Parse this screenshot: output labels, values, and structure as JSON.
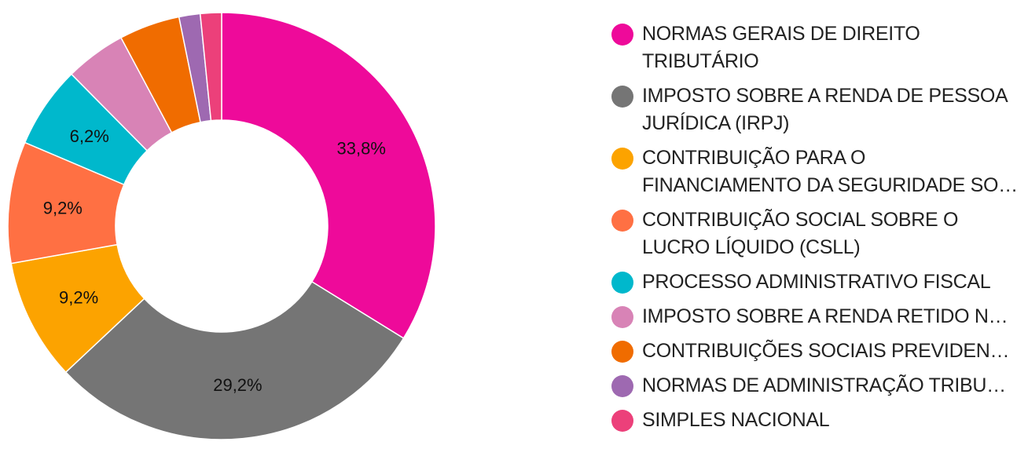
{
  "chart_data": {
    "type": "pie",
    "donut": true,
    "title": "",
    "legend_position": "right",
    "slices": [
      {
        "label": "NORMAS GERAIS DE DIREITO TRIBUTÁRIO",
        "value": 33.8,
        "value_label": "33,8%",
        "color": "#ee0a9a"
      },
      {
        "label": "IMPOSTO SOBRE A RENDA DE PESSOA JURÍDICA (IRPJ)",
        "value": 29.2,
        "value_label": "29,2%",
        "color": "#757575"
      },
      {
        "label": "CONTRIBUIÇÃO PARA O FINANCIAMENTO DA SEGURIDADE SO…",
        "value": 9.2,
        "value_label": "9,2%",
        "color": "#fca300"
      },
      {
        "label": "CONTRIBUIÇÃO SOCIAL SOBRE O LUCRO LÍQUIDO (CSLL)",
        "value": 9.2,
        "value_label": "9,2%",
        "color": "#ff7043"
      },
      {
        "label": "PROCESSO ADMINISTRATIVO FISCAL",
        "value": 6.2,
        "value_label": "6,2%",
        "color": "#00b8cc"
      },
      {
        "label": "IMPOSTO SOBRE A RENDA RETIDO N…",
        "value": 4.6,
        "value_label": "",
        "color": "#d883b6"
      },
      {
        "label": "CONTRIBUIÇÕES SOCIAIS PREVIDENC…",
        "value": 4.6,
        "value_label": "",
        "color": "#f06c00"
      },
      {
        "label": "NORMAS DE ADMINISTRAÇÃO TRIBU…",
        "value": 1.6,
        "value_label": "",
        "color": "#9e69b1"
      },
      {
        "label": "SIMPLES NACIONAL",
        "value": 1.6,
        "value_label": "",
        "color": "#ec407a"
      }
    ]
  }
}
